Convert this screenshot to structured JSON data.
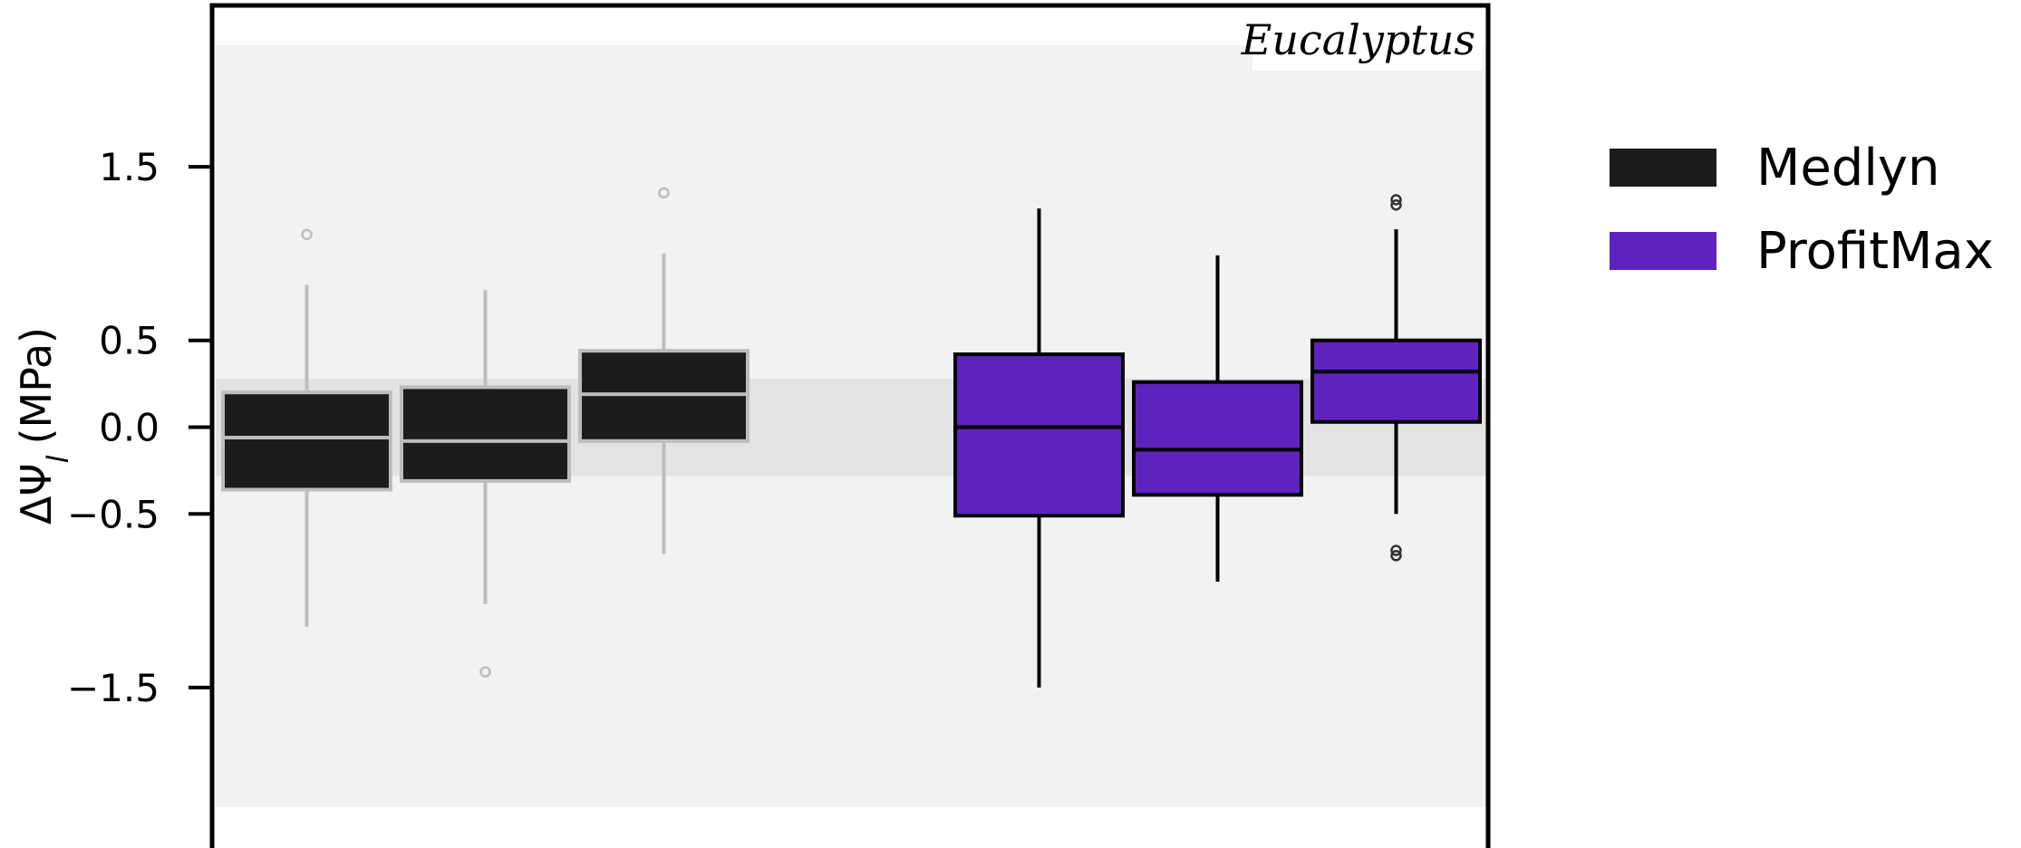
{
  "chart_data": {
    "type": "box",
    "panel_label": "Eucalyptus",
    "ylabel": "ΔΨ",
    "ylabel_subscript": "l",
    "ylabel_unit": "(MPa)",
    "ylim": [
      -2.2,
      2.2
    ],
    "yticks": [
      1.5,
      0.5,
      0.0,
      -0.5,
      -1.5
    ],
    "ytick_labels": [
      "1.5",
      "0.5",
      "0.0",
      "−0.5",
      "−1.5"
    ],
    "background_bands": [
      {
        "from": -2.19,
        "to": 2.2,
        "color": "#f2f2f2"
      },
      {
        "from": -0.28,
        "to": 0.28,
        "color": "#e3e3e3"
      }
    ],
    "legend": {
      "placement": "outside-right",
      "entries": [
        {
          "label": "Medlyn",
          "color": "#1c1c1c"
        },
        {
          "label": "ProfitMax",
          "color": "#5e22bd"
        }
      ]
    },
    "series": [
      {
        "name": "Medlyn",
        "color": "#1c1c1c",
        "line_color": "#bdbdbd",
        "boxes": [
          {
            "whisker_low": -1.15,
            "q1": -0.36,
            "median": -0.06,
            "q3": 0.2,
            "whisker_high": 0.82,
            "outliers": [
              1.11
            ]
          },
          {
            "whisker_low": -1.02,
            "q1": -0.31,
            "median": -0.08,
            "q3": 0.23,
            "whisker_high": 0.79,
            "outliers": [
              -1.41
            ]
          },
          {
            "whisker_low": -0.73,
            "q1": -0.08,
            "median": 0.19,
            "q3": 0.44,
            "whisker_high": 1.0,
            "outliers": [
              1.35
            ]
          }
        ]
      },
      {
        "name": "ProfitMax",
        "color": "#5e22bd",
        "line_color": "#000000",
        "boxes": [
          {
            "whisker_low": -1.5,
            "q1": -0.51,
            "median": 0.0,
            "q3": 0.42,
            "whisker_high": 1.26,
            "outliers": []
          },
          {
            "whisker_low": -0.89,
            "q1": -0.39,
            "median": -0.13,
            "q3": 0.26,
            "whisker_high": 0.99,
            "outliers": []
          },
          {
            "whisker_low": -0.5,
            "q1": 0.03,
            "median": 0.32,
            "q3": 0.5,
            "whisker_high": 1.14,
            "outliers": [
              1.31,
              1.28,
              -0.71,
              -0.74
            ]
          }
        ]
      }
    ]
  }
}
